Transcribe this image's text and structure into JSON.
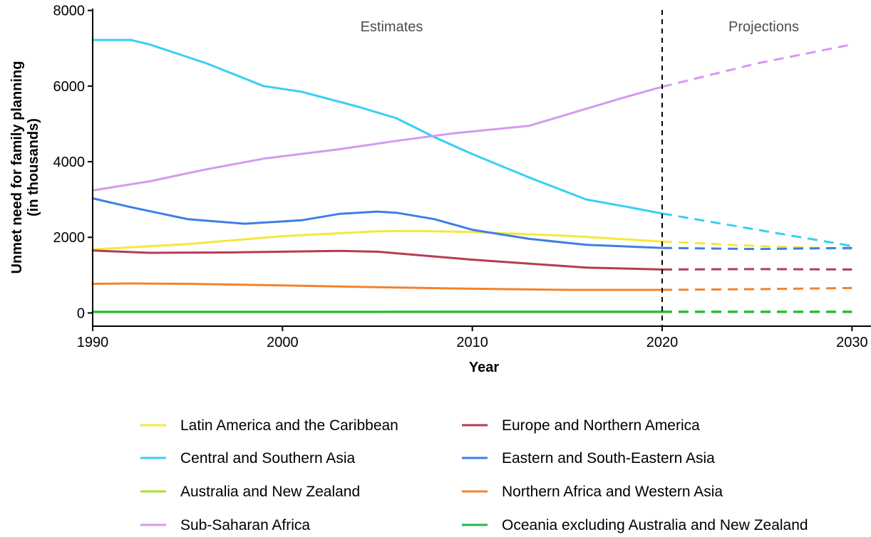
{
  "chart_data": {
    "type": "line",
    "title": "",
    "xlabel": "Year",
    "ylabel_line1": "Unmet need for family planning",
    "ylabel_line2": "(in thousands)",
    "xlim": [
      1990,
      2031
    ],
    "ylim": [
      -350,
      8050
    ],
    "x_ticks": [
      1990,
      2000,
      2010,
      2020,
      2030
    ],
    "y_ticks": [
      0,
      2000,
      4000,
      6000,
      8000
    ],
    "grid": false,
    "divider_x": 2020,
    "estimates_label": "Estimates",
    "projections_label": "Projections",
    "legend_position": "bottom",
    "series": [
      {
        "name": "Latin America and the Caribbean",
        "color": "#f5e93a",
        "estimates": [
          [
            1990,
            1680
          ],
          [
            1995,
            1820
          ],
          [
            2000,
            2030
          ],
          [
            2005,
            2160
          ],
          [
            2007,
            2170
          ],
          [
            2010,
            2140
          ],
          [
            2015,
            2040
          ],
          [
            2020,
            1890
          ]
        ],
        "projections": [
          [
            2020,
            1890
          ],
          [
            2025,
            1770
          ],
          [
            2030,
            1690
          ]
        ]
      },
      {
        "name": "Europe and Northern America",
        "color": "#b33d52",
        "estimates": [
          [
            1990,
            1650
          ],
          [
            1993,
            1590
          ],
          [
            1997,
            1600
          ],
          [
            2000,
            1620
          ],
          [
            2003,
            1640
          ],
          [
            2005,
            1620
          ],
          [
            2010,
            1410
          ],
          [
            2016,
            1200
          ],
          [
            2020,
            1150
          ]
        ],
        "projections": [
          [
            2020,
            1150
          ],
          [
            2025,
            1160
          ],
          [
            2030,
            1150
          ]
        ]
      },
      {
        "name": "Central and Southern Asia",
        "color": "#36d0f5",
        "estimates": [
          [
            1990,
            7220
          ],
          [
            1992,
            7220
          ],
          [
            1993,
            7100
          ],
          [
            1996,
            6600
          ],
          [
            1999,
            6000
          ],
          [
            2001,
            5850
          ],
          [
            2004,
            5450
          ],
          [
            2006,
            5150
          ],
          [
            2008,
            4650
          ],
          [
            2010,
            4200
          ],
          [
            2013,
            3580
          ],
          [
            2016,
            3000
          ],
          [
            2018,
            2820
          ],
          [
            2020,
            2630
          ]
        ],
        "projections": [
          [
            2020,
            2630
          ],
          [
            2025,
            2200
          ],
          [
            2030,
            1770
          ]
        ]
      },
      {
        "name": "Eastern and South-Eastern Asia",
        "color": "#3d7fe6",
        "estimates": [
          [
            1990,
            3030
          ],
          [
            1992,
            2800
          ],
          [
            1995,
            2480
          ],
          [
            1998,
            2360
          ],
          [
            2001,
            2450
          ],
          [
            2003,
            2620
          ],
          [
            2005,
            2680
          ],
          [
            2006,
            2650
          ],
          [
            2008,
            2480
          ],
          [
            2010,
            2200
          ],
          [
            2013,
            1960
          ],
          [
            2016,
            1800
          ],
          [
            2020,
            1720
          ]
        ],
        "projections": [
          [
            2020,
            1720
          ],
          [
            2025,
            1690
          ],
          [
            2030,
            1720
          ]
        ]
      },
      {
        "name": "Australia and New Zealand",
        "color": "#a6e22e",
        "estimates": [
          [
            1990,
            20
          ],
          [
            2000,
            20
          ],
          [
            2010,
            20
          ],
          [
            2020,
            20
          ]
        ],
        "projections": [
          [
            2020,
            20
          ],
          [
            2030,
            20
          ]
        ]
      },
      {
        "name": "Northern Africa and Western Asia",
        "color": "#f5822b",
        "estimates": [
          [
            1990,
            770
          ],
          [
            1992,
            780
          ],
          [
            1995,
            770
          ],
          [
            2000,
            730
          ],
          [
            2005,
            680
          ],
          [
            2010,
            640
          ],
          [
            2015,
            610
          ],
          [
            2020,
            610
          ]
        ],
        "projections": [
          [
            2020,
            610
          ],
          [
            2025,
            630
          ],
          [
            2030,
            660
          ]
        ]
      },
      {
        "name": "Sub-Saharan Africa",
        "color": "#d49af0",
        "estimates": [
          [
            1990,
            3240
          ],
          [
            1993,
            3480
          ],
          [
            1996,
            3800
          ],
          [
            1999,
            4080
          ],
          [
            2003,
            4330
          ],
          [
            2006,
            4550
          ],
          [
            2009,
            4750
          ],
          [
            2013,
            4950
          ],
          [
            2016,
            5400
          ],
          [
            2018,
            5700
          ],
          [
            2020,
            5980
          ]
        ],
        "projections": [
          [
            2020,
            5980
          ],
          [
            2025,
            6600
          ],
          [
            2030,
            7100
          ]
        ]
      },
      {
        "name": "Oceania excluding Australia and New Zealand",
        "color": "#22b94a",
        "estimates": [
          [
            1990,
            30
          ],
          [
            2000,
            30
          ],
          [
            2010,
            35
          ],
          [
            2020,
            35
          ]
        ],
        "projections": [
          [
            2020,
            35
          ],
          [
            2030,
            35
          ]
        ]
      }
    ]
  }
}
